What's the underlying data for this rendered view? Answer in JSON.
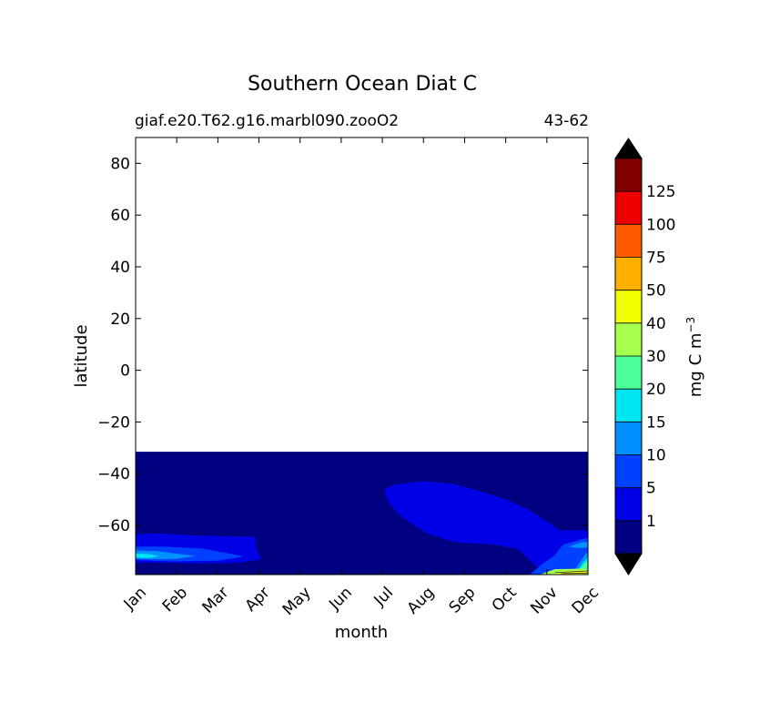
{
  "chart_data": {
    "type": "heatmap",
    "title": "Southern Ocean Diat C",
    "subtitle_left": "giaf.e20.T62.g16.marbl090.zooO2",
    "subtitle_right": "43-62",
    "xlabel": "month",
    "ylabel": "latitude",
    "x_ticks": [
      "Jan",
      "Feb",
      "Mar",
      "Apr",
      "May",
      "Jun",
      "Jul",
      "Aug",
      "Sep",
      "Oct",
      "Nov",
      "Dec"
    ],
    "xlim": [
      0,
      11
    ],
    "y_ticks": [
      {
        "value": 80,
        "label": "80"
      },
      {
        "value": 60,
        "label": "60"
      },
      {
        "value": 40,
        "label": "40"
      },
      {
        "value": 20,
        "label": "20"
      },
      {
        "value": 0,
        "label": "0"
      },
      {
        "value": -20,
        "label": "−20"
      },
      {
        "value": -40,
        "label": "−40"
      },
      {
        "value": -60,
        "label": "−60"
      }
    ],
    "ylim": [
      -79,
      90
    ],
    "data_extent": {
      "lat_min": -79,
      "lat_max": -31.5,
      "background_level": "0-1"
    },
    "colorbar": {
      "label": "mg C m",
      "label_superscript": "−3",
      "extend": "both",
      "over_color": "#000000",
      "under_color": "#000000",
      "boundaries": [
        0,
        1,
        5,
        10,
        15,
        20,
        30,
        40,
        50,
        75,
        100,
        125,
        150
      ],
      "tick_labels": [
        "1",
        "5",
        "10",
        "15",
        "20",
        "30",
        "40",
        "50",
        "75",
        "100",
        "125"
      ],
      "colors": [
        "#000080",
        "#0000e6",
        "#0040ff",
        "#0090ff",
        "#00e6f0",
        "#4dff99",
        "#a6ff4d",
        "#f0ff00",
        "#ffb000",
        "#ff5a00",
        "#ee0000",
        "#800000"
      ]
    },
    "regions": [
      {
        "level": "1-5",
        "description": "mid-latitude patch Jul-Nov around -45 to -62",
        "points": [
          [
            6.05,
            -46
          ],
          [
            6.3,
            -44.3
          ],
          [
            7,
            -43
          ],
          [
            7.7,
            -44
          ],
          [
            8.4,
            -47
          ],
          [
            9,
            -50
          ],
          [
            9.55,
            -54
          ],
          [
            10,
            -58.5
          ],
          [
            10.3,
            -62
          ],
          [
            11,
            -62
          ],
          [
            11,
            -79
          ],
          [
            10.15,
            -79
          ],
          [
            9.8,
            -76.5
          ],
          [
            9.3,
            -69
          ],
          [
            8.7,
            -67.2
          ],
          [
            7.8,
            -66.5
          ],
          [
            7.1,
            -63
          ],
          [
            6.5,
            -57
          ],
          [
            6.15,
            -51
          ]
        ]
      },
      {
        "level": "1-5",
        "description": "Jan-Apr band near -63 to -74",
        "points": [
          [
            0,
            -63.5
          ],
          [
            0.5,
            -63.2
          ],
          [
            1.5,
            -64
          ],
          [
            2.9,
            -64.5
          ],
          [
            2.95,
            -70
          ],
          [
            3.05,
            -73
          ],
          [
            2.5,
            -74.3
          ],
          [
            1.5,
            -74.6
          ],
          [
            0.5,
            -74.2
          ],
          [
            0,
            -74.4
          ]
        ]
      },
      {
        "level": "5-10",
        "description": "Jan-Mar inner band",
        "points": [
          [
            0,
            -68.3
          ],
          [
            0.7,
            -68.3
          ],
          [
            1.6,
            -69
          ],
          [
            2.3,
            -71
          ],
          [
            2.6,
            -72
          ],
          [
            2,
            -73.5
          ],
          [
            0.9,
            -73.8
          ],
          [
            0,
            -73.3
          ]
        ]
      },
      {
        "level": "10-15",
        "description": "Jan inner",
        "points": [
          [
            0,
            -69.8
          ],
          [
            0.5,
            -70
          ],
          [
            1.0,
            -71
          ],
          [
            1.4,
            -71.8
          ],
          [
            1.0,
            -72.8
          ],
          [
            0.4,
            -73
          ],
          [
            0,
            -72.7
          ]
        ]
      },
      {
        "level": "15-20",
        "description": "Jan core",
        "points": [
          [
            0,
            -71
          ],
          [
            0.3,
            -71.2
          ],
          [
            0.55,
            -71.9
          ],
          [
            0.3,
            -72.5
          ],
          [
            0,
            -72.3
          ]
        ]
      },
      {
        "level": "5-10",
        "description": "Nov-Dec southern region",
        "points": [
          [
            9.6,
            -79
          ],
          [
            9.85,
            -75.5
          ],
          [
            10.2,
            -71.5
          ],
          [
            10.4,
            -67.5
          ],
          [
            10.9,
            -65.2
          ],
          [
            11,
            -65
          ],
          [
            11,
            -79
          ]
        ]
      },
      {
        "level": "10-15",
        "description": "Dec band",
        "points": [
          [
            10.55,
            -68.2
          ],
          [
            10.85,
            -66.6
          ],
          [
            11,
            -66.5
          ],
          [
            11,
            -68.5
          ],
          [
            10.75,
            -68.6
          ]
        ]
      },
      {
        "level": "10-15",
        "description": "Nov-Dec lower",
        "points": [
          [
            10.6,
            -79
          ],
          [
            10.8,
            -74.5
          ],
          [
            10.95,
            -71
          ],
          [
            11,
            -70.5
          ],
          [
            11,
            -79
          ]
        ]
      },
      {
        "level": "15-20",
        "description": "Dec lower",
        "points": [
          [
            10.7,
            -79
          ],
          [
            10.88,
            -74.5
          ],
          [
            11,
            -72.5
          ],
          [
            11,
            -79
          ]
        ]
      },
      {
        "level": "20-30",
        "description": "Dec lower core",
        "points": [
          [
            10.78,
            -77.5
          ],
          [
            10.95,
            -74.5
          ],
          [
            11,
            -74
          ],
          [
            11,
            -78
          ]
        ]
      },
      {
        "level": "30-40",
        "description": "Nov-Dec bottom",
        "points": [
          [
            9.85,
            -79
          ],
          [
            10.2,
            -77
          ],
          [
            10.9,
            -76.8
          ],
          [
            11,
            -77.5
          ],
          [
            11,
            -79
          ]
        ]
      },
      {
        "level": "40-50",
        "description": "Nov-Dec bottom core",
        "points": [
          [
            10.1,
            -79
          ],
          [
            10.5,
            -77.9
          ],
          [
            10.9,
            -77.8
          ],
          [
            11,
            -78.2
          ],
          [
            11,
            -79
          ]
        ]
      }
    ]
  }
}
